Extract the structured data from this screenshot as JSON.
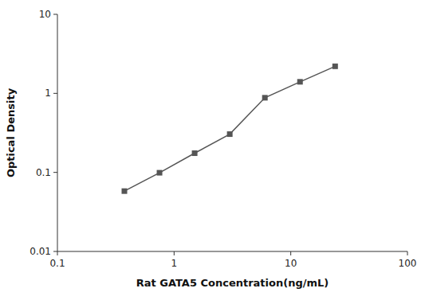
{
  "chart_data": {
    "type": "line",
    "xlabel": "Rat GATA5 Concentration(ng/mL)",
    "ylabel": "Optical Density",
    "x": [
      0.375,
      0.75,
      1.5,
      3.0,
      6.0,
      12.0,
      24.0
    ],
    "values": [
      0.058,
      0.099,
      0.175,
      0.305,
      0.88,
      1.4,
      2.2
    ],
    "color": "#555555",
    "marker": "square",
    "log": true,
    "xlim": [
      0.1,
      100
    ],
    "ylim": [
      0.01,
      10
    ],
    "xticks": [
      0.1,
      1,
      10,
      100
    ],
    "yticks": [
      0.01,
      0.1,
      1,
      10
    ],
    "grid": false
  }
}
